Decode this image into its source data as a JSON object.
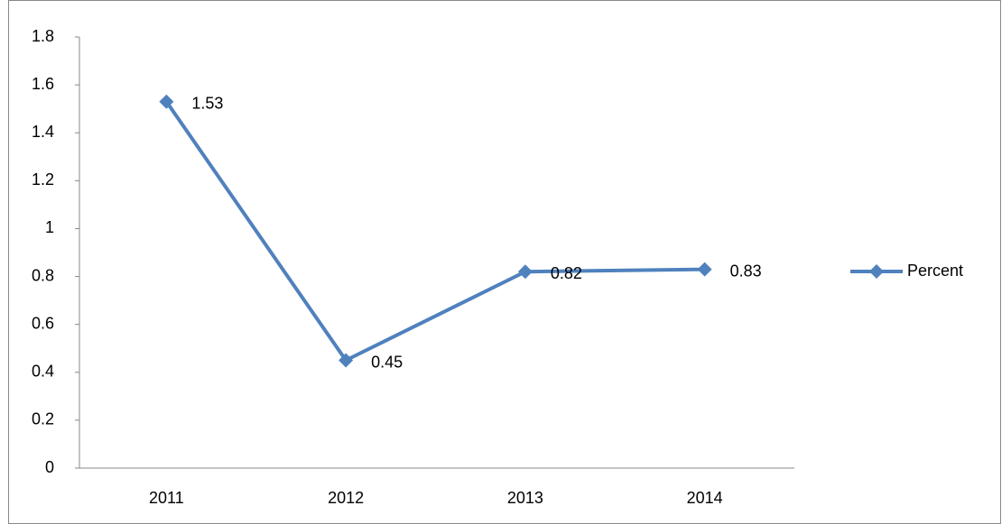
{
  "chart_data": {
    "type": "line",
    "categories": [
      "2011",
      "2012",
      "2013",
      "2014"
    ],
    "series": [
      {
        "name": "Percent",
        "color": "#4f81bd",
        "values": [
          1.53,
          0.45,
          0.82,
          0.83
        ]
      }
    ],
    "ylim": [
      0,
      1.8
    ],
    "yticks": [
      0,
      0.2,
      0.4,
      0.6,
      0.8,
      1,
      1.2,
      1.4,
      1.6,
      1.8
    ],
    "grid": false,
    "legend": "right",
    "data_labels": true
  }
}
